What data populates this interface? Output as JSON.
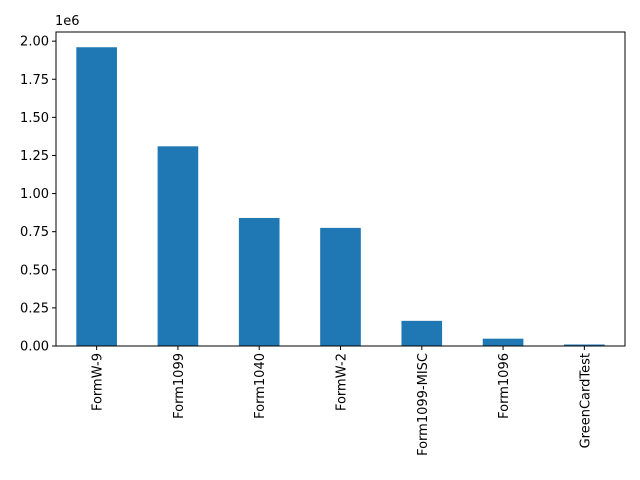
{
  "chart_data": {
    "type": "bar",
    "categories": [
      "FormW-9",
      "Form1099",
      "Form1040",
      "FormW-2",
      "Form1099-MISC",
      "Form1096",
      "GreenCardTest"
    ],
    "values": [
      1960000,
      1310000,
      840000,
      775000,
      165000,
      48000,
      10000
    ],
    "ylim": [
      0,
      2060000
    ],
    "yticks": [
      0,
      250000,
      500000,
      750000,
      1000000,
      1250000,
      1500000,
      1750000,
      2000000
    ],
    "ytick_labels": [
      "0.00",
      "0.25",
      "0.50",
      "0.75",
      "1.00",
      "1.25",
      "1.50",
      "1.75",
      "2.00"
    ],
    "y_offset_label": "1e6",
    "bar_color": "#1f77b4",
    "grid": false,
    "legend": false,
    "title": "",
    "xlabel": "",
    "ylabel": ""
  }
}
